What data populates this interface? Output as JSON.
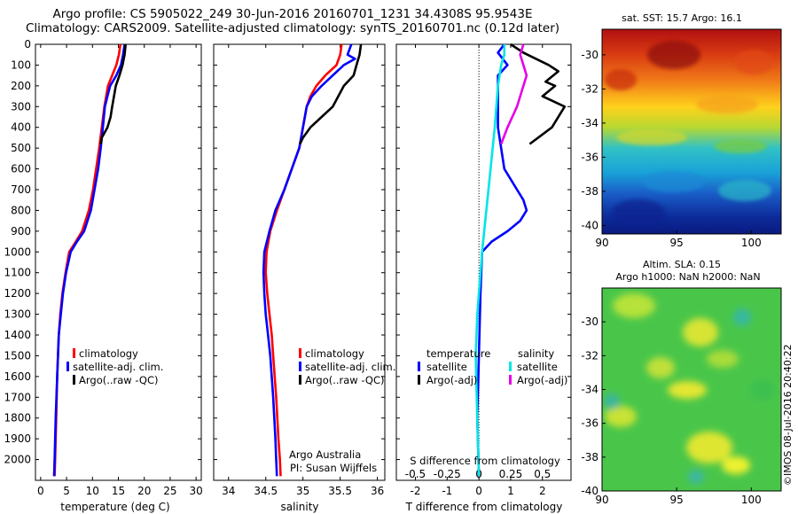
{
  "title_lines": [
    "Argo profile: CS 5905022_249 30-Jun-2016 20160701_1231 34.4308S 95.9543E",
    "Climatology: CARS2009. Satellite-adjusted climatology: synTS_20160701.nc (0.12d later)"
  ],
  "map_titles": {
    "sst": "sat. SST: 15.7 Argo: 16.1",
    "sla_line1": "Altim. SLA: 0.15",
    "sla_line2": "Argo h1000: NaN h2000: NaN"
  },
  "credit": "Argo Australia",
  "pi": "PI: Susan Wijffels",
  "stamp": "©IMOS 08-Jul-2016 20:40:22",
  "legend_left": [
    "climatology",
    "satellite-adj. clim.",
    "Argo(..raw -QC)"
  ],
  "legend_diff": {
    "temp_header": "temperature",
    "sal_header": "salinity",
    "temp_items": [
      "satellite",
      "Argo(-adj)"
    ],
    "sal_items": [
      "satellite",
      "Argo(-adj)"
    ]
  },
  "colors": {
    "climatology": "#ff0000",
    "satellite": "#0000ff",
    "argo": "#000000",
    "sat_salt": "#00e5e5",
    "argo_salt": "#e600e6"
  },
  "chart_data": [
    {
      "type": "line",
      "id": "temperature",
      "xlabel": "temperature (deg C)",
      "ylabel": "",
      "xlim": [
        -1,
        31
      ],
      "ylim": [
        2100,
        0
      ],
      "xticks": [
        0,
        5,
        10,
        15,
        20,
        25,
        30
      ],
      "yticks": [
        0,
        100,
        200,
        300,
        400,
        500,
        600,
        700,
        800,
        900,
        1000,
        1100,
        1200,
        1300,
        1400,
        1500,
        1600,
        1700,
        1800,
        1900,
        2000
      ],
      "series": [
        {
          "name": "climatology",
          "color": "#ff0000",
          "points": [
            [
              15.4,
              0
            ],
            [
              15.1,
              50
            ],
            [
              14.6,
              100
            ],
            [
              13.8,
              150
            ],
            [
              13.0,
              200
            ],
            [
              12.3,
              300
            ],
            [
              11.8,
              400
            ],
            [
              11.3,
              500
            ],
            [
              10.7,
              600
            ],
            [
              10.1,
              700
            ],
            [
              9.3,
              800
            ],
            [
              8.0,
              900
            ],
            [
              6.8,
              950
            ],
            [
              5.5,
              1000
            ],
            [
              4.8,
              1100
            ],
            [
              4.2,
              1200
            ],
            [
              3.8,
              1300
            ],
            [
              3.5,
              1400
            ],
            [
              3.2,
              1600
            ],
            [
              3.0,
              1800
            ],
            [
              2.8,
              2000
            ],
            [
              2.7,
              2080
            ]
          ]
        },
        {
          "name": "satellite-adj. clim.",
          "color": "#0000ff",
          "points": [
            [
              16.2,
              0
            ],
            [
              15.9,
              50
            ],
            [
              15.5,
              100
            ],
            [
              14.6,
              150
            ],
            [
              13.4,
              200
            ],
            [
              12.9,
              250
            ],
            [
              12.4,
              300
            ],
            [
              12.0,
              400
            ],
            [
              11.6,
              500
            ],
            [
              11.1,
              600
            ],
            [
              10.4,
              700
            ],
            [
              9.7,
              800
            ],
            [
              8.4,
              900
            ],
            [
              7.0,
              950
            ],
            [
              5.8,
              1000
            ],
            [
              4.9,
              1100
            ],
            [
              4.3,
              1200
            ],
            [
              3.9,
              1300
            ],
            [
              3.5,
              1400
            ],
            [
              3.2,
              1600
            ],
            [
              2.9,
              1800
            ],
            [
              2.7,
              2000
            ],
            [
              2.6,
              2080
            ]
          ]
        },
        {
          "name": "Argo(..raw -QC)",
          "color": "#000000",
          "points": [
            [
              16.4,
              0
            ],
            [
              16.2,
              50
            ],
            [
              15.8,
              100
            ],
            [
              15.2,
              150
            ],
            [
              14.5,
              200
            ],
            [
              13.8,
              300
            ],
            [
              13.5,
              350
            ],
            [
              12.9,
              400
            ],
            [
              11.8,
              450
            ],
            [
              11.6,
              480
            ]
          ]
        }
      ]
    },
    {
      "type": "line",
      "id": "salinity",
      "xlabel": "salinity",
      "ylabel": "",
      "xlim": [
        33.8,
        36.1
      ],
      "ylim": [
        2100,
        0
      ],
      "xticks": [
        34,
        34.5,
        35,
        35.5,
        36
      ],
      "series": [
        {
          "name": "climatology",
          "color": "#ff0000",
          "points": [
            [
              35.52,
              0
            ],
            [
              35.5,
              50
            ],
            [
              35.45,
              100
            ],
            [
              35.3,
              150
            ],
            [
              35.18,
              200
            ],
            [
              35.1,
              250
            ],
            [
              35.05,
              300
            ],
            [
              35.0,
              400
            ],
            [
              34.95,
              500
            ],
            [
              34.85,
              600
            ],
            [
              34.75,
              700
            ],
            [
              34.65,
              800
            ],
            [
              34.56,
              900
            ],
            [
              34.51,
              1000
            ],
            [
              34.5,
              1100
            ],
            [
              34.52,
              1200
            ],
            [
              34.55,
              1300
            ],
            [
              34.58,
              1400
            ],
            [
              34.6,
              1500
            ],
            [
              34.64,
              1700
            ],
            [
              34.67,
              1900
            ],
            [
              34.69,
              2000
            ],
            [
              34.7,
              2080
            ]
          ]
        },
        {
          "name": "satellite-adj. clim.",
          "color": "#0000ff",
          "points": [
            [
              35.65,
              0
            ],
            [
              35.6,
              50
            ],
            [
              35.7,
              70
            ],
            [
              35.55,
              100
            ],
            [
              35.4,
              150
            ],
            [
              35.25,
              200
            ],
            [
              35.12,
              250
            ],
            [
              35.05,
              300
            ],
            [
              35.0,
              400
            ],
            [
              34.95,
              500
            ],
            [
              34.85,
              600
            ],
            [
              34.75,
              700
            ],
            [
              34.63,
              800
            ],
            [
              34.55,
              900
            ],
            [
              34.48,
              1000
            ],
            [
              34.47,
              1100
            ],
            [
              34.48,
              1200
            ],
            [
              34.5,
              1300
            ],
            [
              34.53,
              1400
            ],
            [
              34.56,
              1500
            ],
            [
              34.6,
              1700
            ],
            [
              34.63,
              1900
            ],
            [
              34.64,
              2000
            ],
            [
              34.65,
              2080
            ]
          ]
        },
        {
          "name": "Argo(..raw -QC)",
          "color": "#000000",
          "points": [
            [
              35.78,
              0
            ],
            [
              35.76,
              50
            ],
            [
              35.72,
              100
            ],
            [
              35.68,
              150
            ],
            [
              35.55,
              200
            ],
            [
              35.4,
              300
            ],
            [
              35.25,
              350
            ],
            [
              35.1,
              400
            ],
            [
              35.0,
              450
            ],
            [
              34.96,
              480
            ]
          ]
        }
      ]
    },
    {
      "type": "line",
      "id": "difference",
      "xlabel": "T difference from climatology",
      "title": "S difference from climatology",
      "xlim": [
        -2.6,
        2.9
      ],
      "ylim": [
        2100,
        0
      ],
      "xticks": [
        -2,
        -1,
        0,
        1,
        2
      ],
      "top_xticks": [
        -0.5,
        -0.25,
        0,
        0.25,
        0.5
      ],
      "top_xlim": [
        -0.65,
        0.725
      ],
      "series": [
        {
          "name": "satellite (temperature)",
          "color": "#0000ff",
          "points": [
            [
              0.8,
              0
            ],
            [
              0.6,
              40
            ],
            [
              0.7,
              60
            ],
            [
              0.9,
              100
            ],
            [
              0.6,
              150
            ],
            [
              0.6,
              200
            ],
            [
              0.6,
              300
            ],
            [
              0.6,
              400
            ],
            [
              0.7,
              500
            ],
            [
              0.8,
              600
            ],
            [
              1.2,
              700
            ],
            [
              1.4,
              750
            ],
            [
              1.5,
              800
            ],
            [
              1.3,
              850
            ],
            [
              0.9,
              900
            ],
            [
              0.4,
              950
            ],
            [
              0.1,
              1000
            ],
            [
              0.05,
              1200
            ],
            [
              0.0,
              1500
            ],
            [
              -0.05,
              1800
            ],
            [
              0.0,
              2080
            ]
          ]
        },
        {
          "name": "Argo(-adj) (temperature)",
          "color": "#000000",
          "points": [
            [
              1.0,
              0
            ],
            [
              1.4,
              40
            ],
            [
              2.2,
              100
            ],
            [
              2.5,
              130
            ],
            [
              2.1,
              180
            ],
            [
              2.4,
              200
            ],
            [
              2.0,
              250
            ],
            [
              2.7,
              300
            ],
            [
              2.3,
              400
            ],
            [
              1.6,
              480
            ]
          ]
        },
        {
          "name": "satellite (salinity)",
          "color": "#00e5e5",
          "points": [
            [
              0.8,
              0
            ],
            [
              0.8,
              50
            ],
            [
              0.7,
              100
            ],
            [
              0.6,
              200
            ],
            [
              0.5,
              400
            ],
            [
              0.3,
              700
            ],
            [
              0.1,
              1000
            ],
            [
              -0.05,
              1300
            ],
            [
              -0.1,
              1500
            ],
            [
              -0.05,
              1800
            ],
            [
              0.0,
              2080
            ]
          ]
        },
        {
          "name": "Argo(-adj) (salinity)",
          "color": "#e600e6",
          "points": [
            [
              1.4,
              0
            ],
            [
              1.3,
              50
            ],
            [
              1.4,
              100
            ],
            [
              1.5,
              150
            ],
            [
              1.4,
              200
            ],
            [
              1.2,
              300
            ],
            [
              0.9,
              400
            ],
            [
              0.7,
              480
            ]
          ]
        }
      ]
    },
    {
      "type": "heatmap",
      "id": "sst-map",
      "xlim": [
        90,
        102
      ],
      "ylim": [
        -40.5,
        -28.5
      ],
      "xticks": [
        90,
        95,
        100
      ],
      "yticks": [
        -30,
        -32,
        -34,
        -36,
        -38,
        -40
      ]
    },
    {
      "type": "heatmap",
      "id": "sla-map",
      "xlim": [
        90,
        102
      ],
      "ylim": [
        -40,
        -28
      ],
      "xticks": [
        90,
        95,
        100
      ],
      "yticks": [
        -30,
        -32,
        -34,
        -36,
        -38,
        -40
      ]
    }
  ]
}
